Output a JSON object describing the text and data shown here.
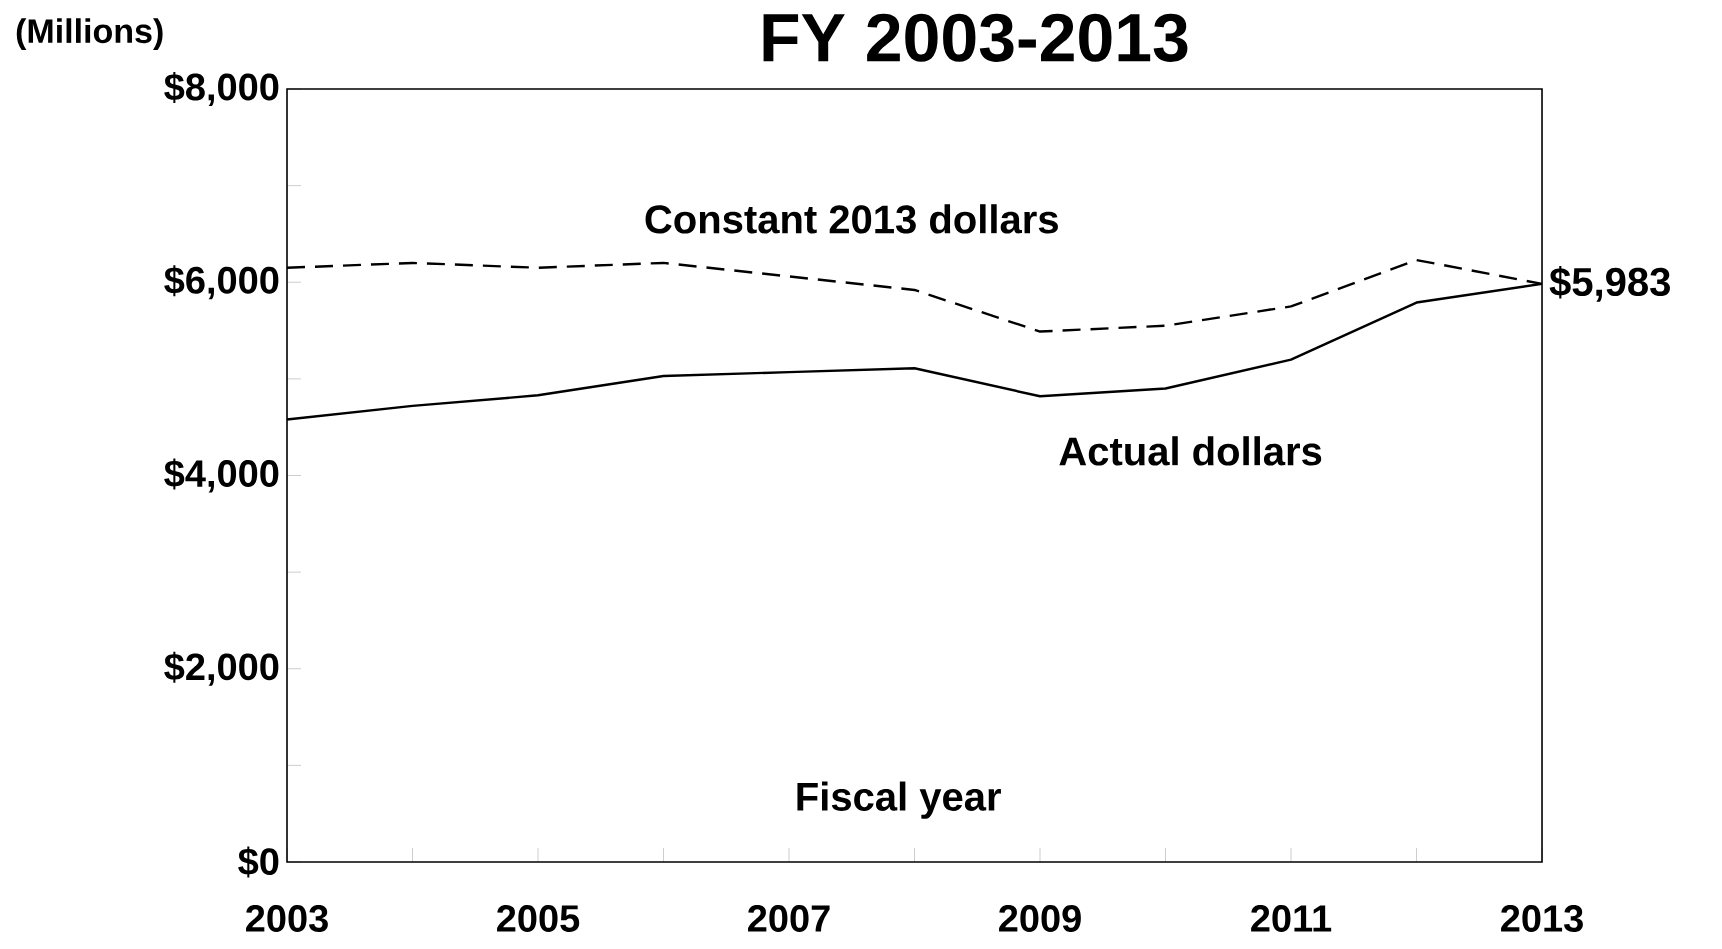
{
  "chart_data": {
    "type": "line",
    "title": "FY 2003-2013",
    "ylabel": "(Millions)",
    "xlabel": "Fiscal year",
    "x": [
      2003,
      2004,
      2005,
      2006,
      2007,
      2008,
      2009,
      2010,
      2011,
      2012,
      2013
    ],
    "series": [
      {
        "name": "Constant 2013 dollars",
        "color": "#000000",
        "line_style": "dashed",
        "values": [
          6150,
          6200,
          6150,
          6200,
          6060,
          5920,
          5490,
          5550,
          5750,
          6230,
          5983
        ]
      },
      {
        "name": "Actual dollars",
        "color": "#000000",
        "line_style": "solid",
        "values": [
          4580,
          4720,
          4830,
          5030,
          5070,
          5110,
          4820,
          4900,
          5200,
          5790,
          5983
        ]
      }
    ],
    "annotations": [
      {
        "text": "$5,983",
        "x": 2013,
        "y": 5983
      }
    ],
    "xlim": [
      2003,
      2013
    ],
    "xticks": [
      2003,
      {
        "value": 2004,
        "label": null
      },
      2005,
      {
        "value": 2006,
        "label": null
      },
      2007,
      {
        "value": 2008,
        "label": null
      },
      2009,
      {
        "value": 2010,
        "label": null
      },
      2011,
      {
        "value": 2012,
        "label": null
      },
      2013
    ],
    "ylim": [
      0,
      8000
    ],
    "yticks": [
      {
        "value": 0,
        "label": "$0"
      },
      {
        "value": 1000,
        "label": null
      },
      {
        "value": 2000,
        "label": "$2,000"
      },
      {
        "value": 3000,
        "label": null
      },
      {
        "value": 4000,
        "label": "$4,000"
      },
      {
        "value": 5000,
        "label": null
      },
      {
        "value": 6000,
        "label": "$6,000"
      },
      {
        "value": 7000,
        "label": null
      },
      {
        "value": 8000,
        "label": "$8,000"
      }
    ],
    "grid": false,
    "marker": "none"
  }
}
